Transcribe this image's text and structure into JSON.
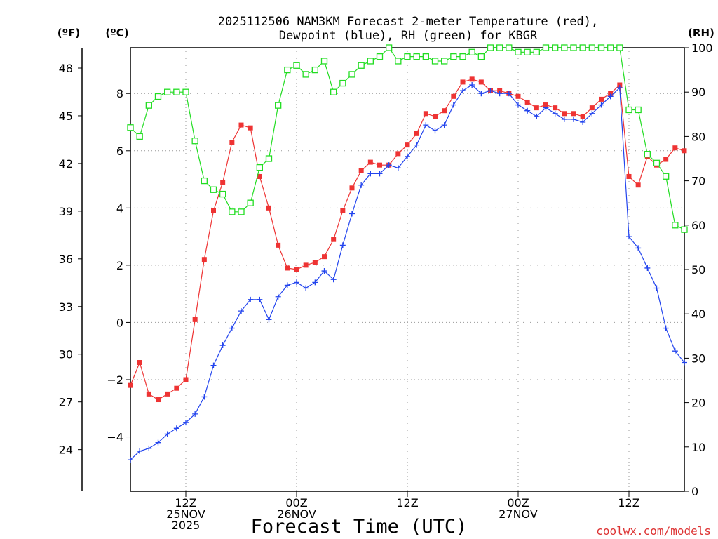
{
  "chart_data": {
    "type": "line",
    "title_line1": "2025112506 NAM3KM Forecast 2-meter Temperature (red),",
    "title_line2": "Dewpoint (blue), RH (green) for KBGR",
    "unit_f": "(ºF)",
    "unit_c": "(ºC)",
    "unit_rh": "(RH)",
    "xlabel": "Forecast Time (UTC)",
    "credit": "coolwx.com/models",
    "x_ticks": [
      {
        "hour": 6,
        "line1": "12Z",
        "line2": "25NOV",
        "line3": "2025"
      },
      {
        "hour": 18,
        "line1": "00Z",
        "line2": "26NOV",
        "line3": ""
      },
      {
        "hour": 30,
        "line1": "12Z",
        "line2": "",
        "line3": ""
      },
      {
        "hour": 42,
        "line1": "00Z",
        "line2": "27NOV",
        "line3": ""
      },
      {
        "hour": 54,
        "line1": "12Z",
        "line2": "",
        "line3": ""
      }
    ],
    "x_range": [
      0,
      60
    ],
    "y_celsius_range": [
      -5.9,
      9.6
    ],
    "y_celsius_ticks": [
      -4,
      -2,
      0,
      2,
      4,
      6,
      8
    ],
    "y_fahrenheit_ticks": [
      24,
      27,
      30,
      33,
      36,
      39,
      42,
      45,
      48
    ],
    "y_rh_range": [
      0,
      100
    ],
    "y_rh_ticks": [
      0,
      10,
      20,
      30,
      40,
      50,
      60,
      70,
      80,
      90,
      100
    ],
    "series": [
      {
        "name": "Temperature",
        "axis": "celsius",
        "color": "#ee3333",
        "marker": "filled-square",
        "x": [
          0,
          1,
          2,
          3,
          4,
          5,
          6,
          7,
          8,
          9,
          10,
          11,
          12,
          13,
          14,
          15,
          16,
          17,
          18,
          19,
          20,
          21,
          22,
          23,
          24,
          25,
          26,
          27,
          28,
          29,
          30,
          31,
          32,
          33,
          34,
          35,
          36,
          37,
          38,
          39,
          40,
          41,
          42,
          43,
          44,
          45,
          46,
          47,
          48,
          49,
          50,
          51,
          52,
          53,
          54,
          55,
          56,
          57,
          58,
          59,
          60
        ],
        "values": [
          -2.2,
          -1.4,
          -2.5,
          -2.7,
          -2.5,
          -2.3,
          -2.0,
          0.1,
          2.2,
          3.9,
          4.9,
          6.3,
          6.9,
          6.8,
          5.1,
          4.0,
          2.7,
          1.9,
          1.85,
          2.0,
          2.1,
          2.3,
          2.9,
          3.9,
          4.7,
          5.3,
          5.6,
          5.5,
          5.5,
          5.9,
          6.2,
          6.6,
          7.3,
          7.2,
          7.4,
          7.9,
          8.4,
          8.5,
          8.4,
          8.1,
          8.1,
          8.0,
          7.9,
          7.7,
          7.5,
          7.6,
          7.5,
          7.3,
          7.3,
          7.2,
          7.5,
          7.8,
          8.0,
          8.3,
          5.1,
          4.8,
          5.8,
          5.5,
          5.7,
          6.1,
          6.0
        ]
      },
      {
        "name": "Dewpoint",
        "axis": "celsius",
        "color": "#2244ee",
        "marker": "plus",
        "x": [
          0,
          1,
          2,
          3,
          4,
          5,
          6,
          7,
          8,
          9,
          10,
          11,
          12,
          13,
          14,
          15,
          16,
          17,
          18,
          19,
          20,
          21,
          22,
          23,
          24,
          25,
          26,
          27,
          28,
          29,
          30,
          31,
          32,
          33,
          34,
          35,
          36,
          37,
          38,
          39,
          40,
          41,
          42,
          43,
          44,
          45,
          46,
          47,
          48,
          49,
          50,
          51,
          52,
          53,
          54,
          55,
          56,
          57,
          58,
          59,
          60
        ],
        "values": [
          -4.8,
          -4.5,
          -4.4,
          -4.2,
          -3.9,
          -3.7,
          -3.5,
          -3.2,
          -2.6,
          -1.5,
          -0.8,
          -0.2,
          0.4,
          0.8,
          0.8,
          0.1,
          0.9,
          1.3,
          1.4,
          1.2,
          1.4,
          1.8,
          1.5,
          2.7,
          3.8,
          4.8,
          5.2,
          5.2,
          5.5,
          5.4,
          5.8,
          6.2,
          6.9,
          6.7,
          6.9,
          7.6,
          8.1,
          8.3,
          8.0,
          8.1,
          8.0,
          8.0,
          7.6,
          7.4,
          7.2,
          7.5,
          7.3,
          7.1,
          7.1,
          7.0,
          7.3,
          7.6,
          7.9,
          8.2,
          3.0,
          2.6,
          1.9,
          1.2,
          -0.2,
          -1.0,
          -1.4
        ]
      },
      {
        "name": "RH",
        "axis": "rh",
        "color": "#22dd22",
        "marker": "open-square",
        "x": [
          0,
          1,
          2,
          3,
          4,
          5,
          6,
          7,
          8,
          9,
          10,
          11,
          12,
          13,
          14,
          15,
          16,
          17,
          18,
          19,
          20,
          21,
          22,
          23,
          24,
          25,
          26,
          27,
          28,
          29,
          30,
          31,
          32,
          33,
          34,
          35,
          36,
          37,
          38,
          39,
          40,
          41,
          42,
          43,
          44,
          45,
          46,
          47,
          48,
          49,
          50,
          51,
          52,
          53,
          54,
          55,
          56,
          57,
          58,
          59,
          60
        ],
        "values": [
          82,
          80,
          87,
          89,
          90,
          90,
          90,
          79,
          70,
          68,
          67,
          63,
          63,
          65,
          73,
          75,
          87,
          95,
          96,
          94,
          95,
          97,
          90,
          92,
          94,
          96,
          97,
          98,
          100,
          97,
          98,
          98,
          98,
          97,
          97,
          98,
          98,
          99,
          98,
          100,
          100,
          100,
          99,
          99,
          99,
          100,
          100,
          100,
          100,
          100,
          100,
          100,
          100,
          100,
          86,
          86,
          76,
          74,
          71,
          60,
          59
        ]
      }
    ]
  }
}
